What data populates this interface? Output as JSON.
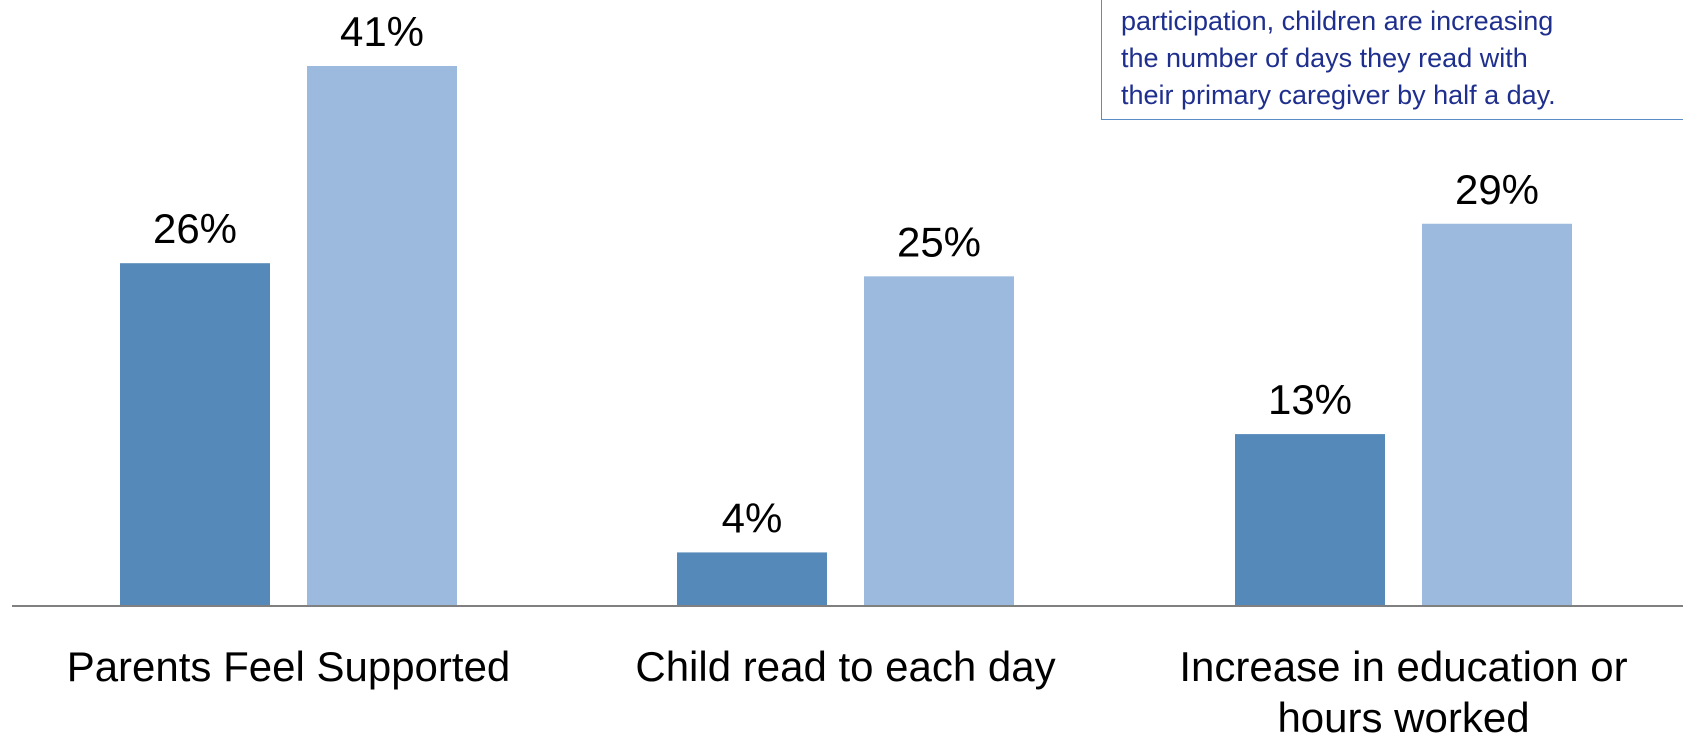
{
  "chart_data": {
    "type": "bar",
    "categories": [
      "Parents Feel Supported",
      "Child read to each day",
      [
        "Increase in education or",
        "hours worked"
      ]
    ],
    "series": [
      {
        "values": [
          26,
          4,
          13
        ],
        "data_labels": [
          "26%",
          "4%",
          "13%"
        ],
        "color": "#5589b9"
      },
      {
        "values": [
          41,
          25,
          29
        ],
        "data_labels": [
          "41%",
          "25%",
          "29%"
        ],
        "color": "#9bbadd"
      }
    ],
    "ylim": [
      0,
      41
    ]
  },
  "annotation": {
    "lines": [
      "participation, children are increasing",
      "the number of days they read with",
      "their primary caregiver by half a day."
    ]
  },
  "colors": {
    "axis": "#808080",
    "annotation_text": "#1f2f8e",
    "annotation_border": "#5b8dc4"
  }
}
